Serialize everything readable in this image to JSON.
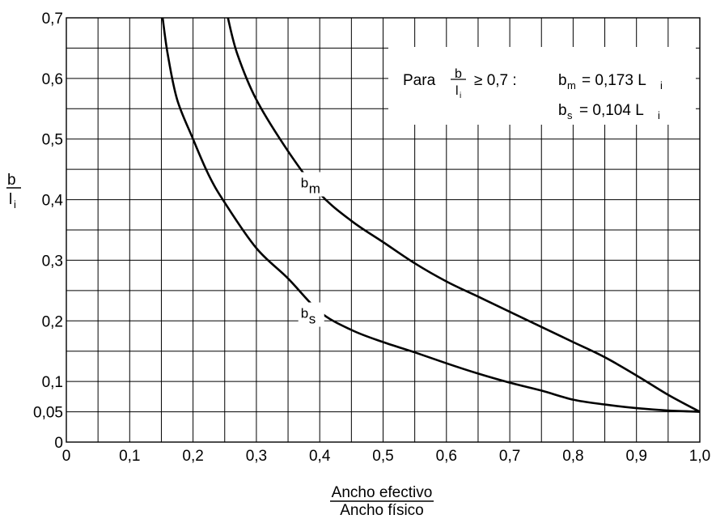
{
  "chart_data": {
    "type": "line",
    "xlim": [
      0,
      1.0
    ],
    "ylim": [
      0,
      0.7
    ],
    "grid": true,
    "x_ticks": [
      "0",
      "0,1",
      "0,2",
      "0,3",
      "0,4",
      "0,5",
      "0,6",
      "0,7",
      "0,8",
      "0,9",
      "1,0"
    ],
    "y_ticks": [
      {
        "value": 0,
        "label": "0"
      },
      {
        "value": 0.05,
        "label": "0,05"
      },
      {
        "value": 0.1,
        "label": "0,1"
      },
      {
        "value": 0.2,
        "label": "0,2"
      },
      {
        "value": 0.3,
        "label": "0,3"
      },
      {
        "value": 0.4,
        "label": "0,4"
      },
      {
        "value": 0.5,
        "label": "0,5"
      },
      {
        "value": 0.6,
        "label": "0,6"
      },
      {
        "value": 0.7,
        "label": "0,7"
      }
    ],
    "xlabel_numerator": "Ancho efectivo",
    "xlabel_denominator": "Ancho físico",
    "ylabel_numerator": "b",
    "ylabel_denominator": "l",
    "ylabel_subscript": "i",
    "series": [
      {
        "name_base": "b",
        "name_sub": "m",
        "name_at": [
          0.37,
          0.42
        ],
        "points": [
          [
            0.255,
            0.7
          ],
          [
            0.27,
            0.64
          ],
          [
            0.3,
            0.565
          ],
          [
            0.35,
            0.48
          ],
          [
            0.4,
            0.41
          ],
          [
            0.45,
            0.365
          ],
          [
            0.5,
            0.33
          ],
          [
            0.55,
            0.295
          ],
          [
            0.6,
            0.265
          ],
          [
            0.65,
            0.24
          ],
          [
            0.7,
            0.215
          ],
          [
            0.75,
            0.19
          ],
          [
            0.8,
            0.165
          ],
          [
            0.85,
            0.14
          ],
          [
            0.9,
            0.11
          ],
          [
            0.95,
            0.078
          ],
          [
            1.0,
            0.05
          ]
        ]
      },
      {
        "name_base": "b",
        "name_sub": "s",
        "name_at": [
          0.37,
          0.205
        ],
        "points": [
          [
            0.152,
            0.7
          ],
          [
            0.16,
            0.64
          ],
          [
            0.175,
            0.565
          ],
          [
            0.2,
            0.5
          ],
          [
            0.225,
            0.44
          ],
          [
            0.25,
            0.395
          ],
          [
            0.3,
            0.32
          ],
          [
            0.35,
            0.27
          ],
          [
            0.4,
            0.215
          ],
          [
            0.45,
            0.185
          ],
          [
            0.5,
            0.165
          ],
          [
            0.55,
            0.148
          ],
          [
            0.6,
            0.13
          ],
          [
            0.65,
            0.113
          ],
          [
            0.7,
            0.098
          ],
          [
            0.75,
            0.085
          ],
          [
            0.8,
            0.07
          ],
          [
            0.85,
            0.062
          ],
          [
            0.9,
            0.056
          ],
          [
            0.95,
            0.052
          ],
          [
            1.0,
            0.05
          ]
        ]
      }
    ],
    "annotation": {
      "prefix": "Para",
      "frac_num": "b",
      "frac_den": "l",
      "frac_den_sub": "i",
      "condition": "≥ 0,7 :",
      "eq1_lhs_base": "b",
      "eq1_lhs_sub": "m",
      "eq1_rhs_text": "= 0,173 L",
      "eq1_rhs_sub": "i",
      "eq2_lhs_base": "b",
      "eq2_lhs_sub": "s",
      "eq2_rhs_text": "= 0,104 L",
      "eq2_rhs_sub": "i"
    }
  }
}
